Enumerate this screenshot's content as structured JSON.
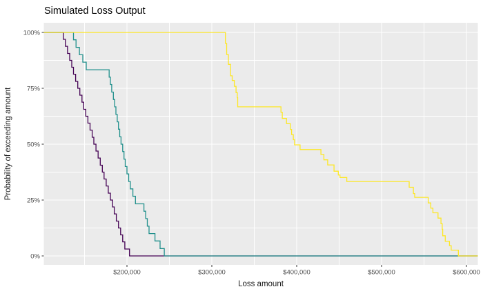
{
  "window": {
    "title": "Simulated Loss Output"
  },
  "chart_data": {
    "type": "line",
    "subtype": "step-exceedance-curves",
    "title": "Simulated Loss Output",
    "xlabel": "Loss amount",
    "ylabel": "Probability of exceeding amount",
    "legend_position": "none",
    "grid": true,
    "panel_bg": "#EBEBEB",
    "grid_color": "#FFFFFF",
    "tick_color": "#333333",
    "tick_label_color": "#4d4d4d",
    "x_domain": [
      102000,
      613400
    ],
    "y_domain_pct": [
      -4.3,
      104.3
    ],
    "x_tick_values": [
      200000,
      300000,
      400000,
      500000,
      600000
    ],
    "x_tick_labels": [
      "$200,000",
      "$300,000",
      "$400,000",
      "$500,000",
      "$600,000"
    ],
    "x_minor_values": [
      150000,
      250000,
      350000,
      450000,
      550000
    ],
    "y_tick_values": [
      0,
      25,
      50,
      75,
      100
    ],
    "y_tick_labels": [
      "0%",
      "25%",
      "50%",
      "75%",
      "100%"
    ],
    "y_minor_values": [
      12.5,
      37.5,
      62.5,
      87.5
    ],
    "series": [
      {
        "name": "simulation-1-purple",
        "color": "#440154",
        "start_probability_pct": 100,
        "steps": [
          [
            125000,
            96.9
          ],
          [
            127500,
            93.8
          ],
          [
            130000,
            90.6
          ],
          [
            132500,
            87.5
          ],
          [
            135000,
            84.4
          ],
          [
            137000,
            81.3
          ],
          [
            139500,
            78.1
          ],
          [
            142000,
            75.0
          ],
          [
            144500,
            71.9
          ],
          [
            147000,
            68.8
          ],
          [
            149000,
            65.6
          ],
          [
            151500,
            62.5
          ],
          [
            154000,
            59.4
          ],
          [
            156500,
            56.3
          ],
          [
            159000,
            53.1
          ],
          [
            161000,
            50.0
          ],
          [
            163500,
            46.9
          ],
          [
            166000,
            43.8
          ],
          [
            168500,
            40.6
          ],
          [
            171000,
            37.5
          ],
          [
            173000,
            34.4
          ],
          [
            175500,
            31.3
          ],
          [
            178000,
            28.1
          ],
          [
            180500,
            25.0
          ],
          [
            183000,
            21.9
          ],
          [
            185000,
            18.8
          ],
          [
            187500,
            15.6
          ],
          [
            190000,
            12.5
          ],
          [
            192500,
            9.4
          ],
          [
            195000,
            6.3
          ],
          [
            197500,
            3.1
          ],
          [
            203000,
            0
          ]
        ]
      },
      {
        "name": "simulation-2-teal",
        "color": "#21908C",
        "start_probability_pct": 100,
        "steps": [
          [
            137000,
            96.7
          ],
          [
            140000,
            93.3
          ],
          [
            144000,
            90.0
          ],
          [
            148000,
            86.7
          ],
          [
            152000,
            83.3
          ],
          [
            179000,
            80.0
          ],
          [
            180500,
            76.7
          ],
          [
            182000,
            73.3
          ],
          [
            184000,
            70.0
          ],
          [
            185500,
            66.7
          ],
          [
            187000,
            63.3
          ],
          [
            188500,
            60.0
          ],
          [
            190000,
            56.7
          ],
          [
            191500,
            53.3
          ],
          [
            193000,
            50.0
          ],
          [
            195000,
            46.7
          ],
          [
            196500,
            43.3
          ],
          [
            198000,
            40.0
          ],
          [
            200000,
            36.7
          ],
          [
            202000,
            33.3
          ],
          [
            204000,
            30.0
          ],
          [
            207000,
            26.7
          ],
          [
            210000,
            23.3
          ],
          [
            220000,
            20.0
          ],
          [
            222000,
            16.7
          ],
          [
            224000,
            13.3
          ],
          [
            226000,
            10.0
          ],
          [
            233000,
            6.7
          ],
          [
            239000,
            3.3
          ],
          [
            244000,
            0
          ]
        ]
      },
      {
        "name": "simulation-3-yellow",
        "color": "#FDE725",
        "start_probability_pct": 100,
        "steps": [
          [
            316000,
            95.1
          ],
          [
            317500,
            90.1
          ],
          [
            319500,
            85.7
          ],
          [
            322000,
            80.6
          ],
          [
            324000,
            78.5
          ],
          [
            326500,
            75.9
          ],
          [
            328500,
            73.1
          ],
          [
            330000,
            70.8
          ],
          [
            330500,
            66.7
          ],
          [
            381500,
            64.3
          ],
          [
            383000,
            61.5
          ],
          [
            388000,
            59.2
          ],
          [
            392500,
            56.6
          ],
          [
            394000,
            54.3
          ],
          [
            396000,
            52.0
          ],
          [
            397500,
            49.7
          ],
          [
            404000,
            47.6
          ],
          [
            428500,
            45.4
          ],
          [
            432000,
            43.0
          ],
          [
            436500,
            40.7
          ],
          [
            444000,
            37.9
          ],
          [
            449000,
            36.2
          ],
          [
            451000,
            35.1
          ],
          [
            459000,
            33.3
          ],
          [
            532500,
            30.7
          ],
          [
            537500,
            27.9
          ],
          [
            539000,
            26.2
          ],
          [
            555000,
            23.7
          ],
          [
            558000,
            21.4
          ],
          [
            560500,
            19.3
          ],
          [
            566500,
            16.9
          ],
          [
            570000,
            14.4
          ],
          [
            571500,
            11.9
          ],
          [
            572000,
            9.0
          ],
          [
            575000,
            6.5
          ],
          [
            580000,
            4.6
          ],
          [
            582000,
            2.6
          ],
          [
            590500,
            0
          ]
        ]
      }
    ]
  }
}
